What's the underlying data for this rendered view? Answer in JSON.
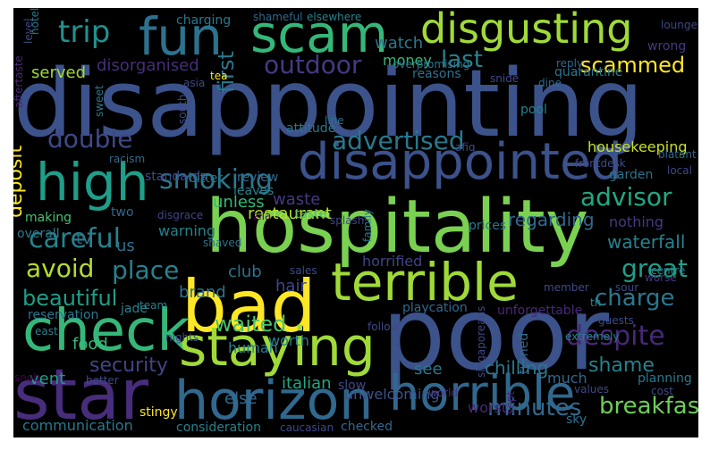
{
  "cloud": {
    "colormap": "viridis",
    "background": "#000000",
    "words": [
      {
        "text": "disappointing",
        "color": "#3b528b"
      },
      {
        "text": "poor",
        "color": "#3b528b"
      },
      {
        "text": "hospitality",
        "color": "#7ad151"
      },
      {
        "text": "bad",
        "color": "#fde725"
      },
      {
        "text": "star",
        "color": "#472d7b"
      },
      {
        "text": "horizon",
        "color": "#31688e"
      },
      {
        "text": "horrible",
        "color": "#31688e"
      },
      {
        "text": "disappointed",
        "color": "#3b528b"
      },
      {
        "text": "check",
        "color": "#35b779"
      },
      {
        "text": "staying",
        "color": "#a0da39"
      },
      {
        "text": "terrible",
        "color": "#a0da39"
      },
      {
        "text": "high",
        "color": "#1f9e89"
      },
      {
        "text": "scam",
        "color": "#35b779"
      },
      {
        "text": "fun",
        "color": "#2c728e"
      },
      {
        "text": "disgusting",
        "color": "#a0da39"
      },
      {
        "text": "trip",
        "color": "#21918c"
      },
      {
        "text": "first",
        "color": "#2a788e"
      },
      {
        "text": "outdoor",
        "color": "#443983"
      },
      {
        "text": "last",
        "color": "#26828e"
      },
      {
        "text": "scammed",
        "color": "#fde725"
      },
      {
        "text": "double",
        "color": "#3e4989"
      },
      {
        "text": "advertised",
        "color": "#2a788e"
      },
      {
        "text": "smoking",
        "color": "#2a788e"
      },
      {
        "text": "advisor",
        "color": "#22a884"
      },
      {
        "text": "careful",
        "color": "#26828e"
      },
      {
        "text": "avoid",
        "color": "#b5de2b"
      },
      {
        "text": "place",
        "color": "#26828e"
      },
      {
        "text": "great",
        "color": "#1f9e89"
      },
      {
        "text": "beautiful",
        "color": "#1f9e89"
      },
      {
        "text": "charge",
        "color": "#2a788e"
      },
      {
        "text": "despite",
        "color": "#482878"
      },
      {
        "text": "waited",
        "color": "#4ac16d"
      },
      {
        "text": "security",
        "color": "#414487"
      },
      {
        "text": "shame",
        "color": "#26828e"
      },
      {
        "text": "minutes",
        "color": "#31688e"
      },
      {
        "text": "breakfast",
        "color": "#6ece58"
      },
      {
        "text": "deposit",
        "color": "#fde725"
      },
      {
        "text": "brand",
        "color": "#2c728e"
      },
      {
        "text": "restaurant",
        "color": "#b5de2b"
      },
      {
        "text": "waterfall",
        "color": "#26828e"
      },
      {
        "text": "housekeeping",
        "color": "#c8e020"
      },
      {
        "text": "regarding",
        "color": "#31688e"
      },
      {
        "text": "waste",
        "color": "#443983"
      },
      {
        "text": "watch",
        "color": "#2a788e"
      },
      {
        "text": "money",
        "color": "#35b779"
      },
      {
        "text": "served",
        "color": "#a0da39"
      },
      {
        "text": "disorganised",
        "color": "#472d7b"
      },
      {
        "text": "horrified",
        "color": "#414487"
      },
      {
        "text": "unless",
        "color": "#35b779"
      },
      {
        "text": "club",
        "color": "#2c728e"
      },
      {
        "text": "hair",
        "color": "#3e4989"
      },
      {
        "text": "human",
        "color": "#26828e"
      },
      {
        "text": "worth",
        "color": "#26828e"
      },
      {
        "text": "chilling",
        "color": "#2a788e"
      },
      {
        "text": "italian",
        "color": "#22a884"
      },
      {
        "text": "else",
        "color": "#31688e"
      },
      {
        "text": "unwelcoming",
        "color": "#3b528b"
      },
      {
        "text": "much",
        "color": "#31688e"
      },
      {
        "text": "nothing",
        "color": "#443983"
      },
      {
        "text": "warning",
        "color": "#26828e"
      },
      {
        "text": "food",
        "color": "#35b779"
      },
      {
        "text": "vent",
        "color": "#1f9e89"
      },
      {
        "text": "communication",
        "color": "#2a788e"
      },
      {
        "text": "tv",
        "color": "#2c728e"
      },
      {
        "text": "us",
        "color": "#2c728e"
      },
      {
        "text": "see",
        "color": "#2a788e"
      },
      {
        "text": "worst",
        "color": "#482878"
      },
      {
        "text": "stingy",
        "color": "#fde725"
      },
      {
        "text": "making",
        "color": "#4ac16d"
      },
      {
        "text": "review",
        "color": "#31688e"
      },
      {
        "text": "leaves",
        "color": "#26828e"
      },
      {
        "text": "standards",
        "color": "#3e4989"
      },
      {
        "text": "bitter",
        "color": "#2c728e"
      },
      {
        "text": "taste",
        "color": "#4ac16d"
      },
      {
        "text": "prices",
        "color": "#2a788e"
      },
      {
        "text": "zila",
        "color": "#440154"
      },
      {
        "text": "overall",
        "color": "#2a788e"
      },
      {
        "text": "splash",
        "color": "#414487"
      },
      {
        "text": "jade",
        "color": "#26828e"
      },
      {
        "text": "team",
        "color": "#26828e"
      },
      {
        "text": "reservation",
        "color": "#2a788e"
      },
      {
        "text": "sales",
        "color": "#3e4989"
      },
      {
        "text": "member",
        "color": "#3e4989"
      },
      {
        "text": "centre",
        "color": "#26828e"
      },
      {
        "text": "sour",
        "color": "#3e4989"
      },
      {
        "text": "worse",
        "color": "#443983"
      },
      {
        "text": "playcation",
        "color": "#31688e"
      },
      {
        "text": "unforgettable",
        "color": "#482878"
      },
      {
        "text": "guests",
        "color": "#3e4989"
      },
      {
        "text": "extremely",
        "color": "#26828e"
      },
      {
        "text": "planning",
        "color": "#2a788e"
      },
      {
        "text": "values",
        "color": "#3e4989"
      },
      {
        "text": "cost",
        "color": "#3e4989"
      },
      {
        "text": "slow",
        "color": "#3e4989"
      },
      {
        "text": "sky",
        "color": "#2c728e"
      },
      {
        "text": "consideration",
        "color": "#26828e"
      },
      {
        "text": "caucasian",
        "color": "#3e4989"
      },
      {
        "text": "checked",
        "color": "#31688e"
      },
      {
        "text": "quarantine",
        "color": "#2a788e"
      },
      {
        "text": "reasons",
        "color": "#2c728e"
      },
      {
        "text": "overpromising",
        "color": "#2c728e"
      },
      {
        "text": "reply",
        "color": "#31688e"
      },
      {
        "text": "wrong",
        "color": "#443983"
      },
      {
        "text": "lounge",
        "color": "#3e4989"
      },
      {
        "text": "charging",
        "color": "#2a788e"
      },
      {
        "text": "shameful",
        "color": "#31688e"
      },
      {
        "text": "elsewhere",
        "color": "#26828e"
      },
      {
        "text": "tea",
        "color": "#fde725"
      },
      {
        "text": "snide",
        "color": "#3e4989"
      },
      {
        "text": "dine",
        "color": "#31688e"
      },
      {
        "text": "pool",
        "color": "#26828e"
      },
      {
        "text": "attitude",
        "color": "#2a788e"
      },
      {
        "text": "line",
        "color": "#2c728e"
      },
      {
        "text": "afiq",
        "color": "#3e4989"
      },
      {
        "text": "frontdesk",
        "color": "#3e4989"
      },
      {
        "text": "blatant",
        "color": "#31688e"
      },
      {
        "text": "local",
        "color": "#3e4989"
      },
      {
        "text": "garden",
        "color": "#2c728e"
      },
      {
        "text": "racism",
        "color": "#31688e"
      },
      {
        "text": "disgrace",
        "color": "#414487"
      },
      {
        "text": "shaved",
        "color": "#2c728e"
      },
      {
        "text": "two",
        "color": "#31688e"
      },
      {
        "text": "family",
        "color": "#2a788e"
      },
      {
        "text": "follow",
        "color": "#3e4989"
      },
      {
        "text": "th",
        "color": "#26828e"
      },
      {
        "text": "east",
        "color": "#26828e"
      },
      {
        "text": "nights",
        "color": "#3e4989"
      },
      {
        "text": "better",
        "color": "#3e4989"
      },
      {
        "text": "singaporeans",
        "color": "#3e4989"
      },
      {
        "text": "turned",
        "color": "#31688e"
      },
      {
        "text": "world",
        "color": "#443983"
      },
      {
        "text": "sept",
        "color": "#482878"
      },
      {
        "text": "snob",
        "color": "#440154"
      },
      {
        "text": "asia",
        "color": "#3e4989"
      },
      {
        "text": "sweet",
        "color": "#2a788e"
      },
      {
        "text": "south",
        "color": "#3e4989"
      },
      {
        "text": "level",
        "color": "#3e4989"
      },
      {
        "text": "aftertaste",
        "color": "#482878"
      },
      {
        "text": "hotel",
        "color": "#2a788e"
      }
    ]
  }
}
